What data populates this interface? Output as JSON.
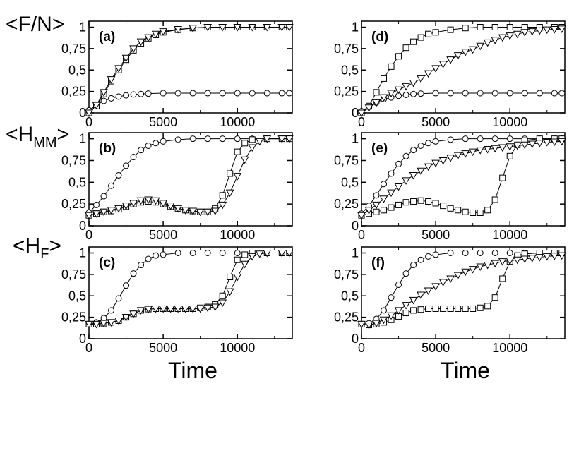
{
  "figure": {
    "row_labels": [
      {
        "base": "<F/N>",
        "sub": ""
      },
      {
        "base": "<H",
        "sub": "MM",
        "tail": ">"
      },
      {
        "base": "<H",
        "sub": "F",
        "tail": ">"
      }
    ],
    "xlabel": "Time",
    "x_ticks": [
      "0",
      "5000",
      "10000"
    ],
    "y_ticks": [
      "0",
      "0,25",
      "0,5",
      "0,75",
      "1"
    ]
  },
  "chart_data": [
    {
      "type": "line",
      "panel": "(a)",
      "xlim": [
        0,
        13700
      ],
      "ylim": [
        0,
        1.07
      ],
      "grid": false,
      "series": [
        {
          "marker": "circle",
          "x": [
            0,
            500,
            1000,
            1500,
            2000,
            2500,
            3000,
            3500,
            4000,
            5000,
            6000,
            7000,
            8000,
            9000,
            10000,
            11000,
            12000,
            13000,
            13500
          ],
          "y": [
            0.03,
            0.09,
            0.14,
            0.17,
            0.19,
            0.205,
            0.215,
            0.22,
            0.225,
            0.23,
            0.23,
            0.23,
            0.23,
            0.23,
            0.23,
            0.23,
            0.23,
            0.23,
            0.23
          ]
        },
        {
          "marker": "square",
          "x": [
            0,
            500,
            1000,
            1500,
            2000,
            2500,
            3000,
            3500,
            4000,
            4500,
            5000,
            6000,
            7000,
            8000,
            9000,
            10000,
            11000,
            12000,
            13000,
            13500
          ],
          "y": [
            0.0,
            0.08,
            0.22,
            0.37,
            0.5,
            0.62,
            0.73,
            0.81,
            0.87,
            0.91,
            0.94,
            0.97,
            0.99,
            1.0,
            1.0,
            1.0,
            1.0,
            1.0,
            1.0,
            1.0
          ]
        },
        {
          "marker": "triangle",
          "x": [
            0,
            500,
            1000,
            1500,
            2000,
            2500,
            3000,
            3500,
            4000,
            4500,
            5000,
            6000,
            7000,
            8000,
            9000,
            10000,
            11000,
            12000,
            13000,
            13500
          ],
          "y": [
            0.0,
            0.09,
            0.24,
            0.39,
            0.52,
            0.64,
            0.75,
            0.83,
            0.88,
            0.92,
            0.95,
            0.975,
            0.99,
            1.0,
            1.0,
            1.0,
            1.0,
            1.0,
            1.0,
            1.0
          ]
        }
      ]
    },
    {
      "type": "line",
      "panel": "(b)",
      "xlim": [
        0,
        13700
      ],
      "ylim": [
        0,
        1.07
      ],
      "grid": false,
      "series": [
        {
          "marker": "circle",
          "x": [
            0,
            500,
            1000,
            1500,
            2000,
            2500,
            3000,
            3500,
            4000,
            4500,
            5000,
            6000,
            7000,
            8000,
            9000,
            10000,
            11000,
            12000,
            13000,
            13500
          ],
          "y": [
            0.15,
            0.24,
            0.34,
            0.46,
            0.58,
            0.69,
            0.79,
            0.87,
            0.92,
            0.95,
            0.97,
            0.99,
            1.0,
            1.0,
            1.0,
            1.0,
            1.0,
            1.0,
            1.0,
            1.0
          ]
        },
        {
          "marker": "square",
          "x": [
            0,
            500,
            1000,
            1500,
            2000,
            2500,
            3000,
            3500,
            4000,
            4500,
            5000,
            5500,
            6000,
            6500,
            7000,
            7500,
            8000,
            8500,
            9000,
            9500,
            10000,
            10500,
            11000,
            12000,
            13000,
            13500
          ],
          "y": [
            0.12,
            0.14,
            0.16,
            0.17,
            0.19,
            0.22,
            0.25,
            0.27,
            0.28,
            0.27,
            0.25,
            0.22,
            0.2,
            0.18,
            0.17,
            0.16,
            0.16,
            0.2,
            0.35,
            0.6,
            0.85,
            0.95,
            0.99,
            1.0,
            1.0,
            1.0
          ]
        },
        {
          "marker": "triangle",
          "x": [
            0,
            500,
            1000,
            1500,
            2000,
            2500,
            3000,
            3500,
            4000,
            4500,
            5000,
            5500,
            6000,
            6500,
            7000,
            7500,
            8000,
            8500,
            9000,
            9500,
            10000,
            10500,
            11000,
            11500,
            12000,
            13000,
            13500
          ],
          "y": [
            0.12,
            0.14,
            0.16,
            0.18,
            0.2,
            0.23,
            0.26,
            0.29,
            0.3,
            0.29,
            0.26,
            0.23,
            0.2,
            0.18,
            0.17,
            0.16,
            0.16,
            0.17,
            0.24,
            0.38,
            0.57,
            0.76,
            0.9,
            0.97,
            1.0,
            1.0,
            1.0
          ]
        }
      ]
    },
    {
      "type": "line",
      "panel": "(c)",
      "xlim": [
        0,
        13700
      ],
      "ylim": [
        0,
        1.07
      ],
      "grid": false,
      "series": [
        {
          "marker": "circle",
          "x": [
            0,
            500,
            1000,
            1500,
            2000,
            2500,
            3000,
            3500,
            4000,
            4500,
            5000,
            6000,
            7000,
            8000,
            9000,
            10000,
            11000,
            12000,
            13000,
            13500
          ],
          "y": [
            0.17,
            0.19,
            0.24,
            0.33,
            0.47,
            0.62,
            0.76,
            0.86,
            0.93,
            0.97,
            0.98,
            1.0,
            1.0,
            1.0,
            1.0,
            1.0,
            1.0,
            1.0,
            1.0,
            1.0
          ]
        },
        {
          "marker": "square",
          "x": [
            0,
            500,
            1000,
            1500,
            2000,
            2500,
            3000,
            3500,
            4000,
            4500,
            5000,
            5500,
            6000,
            6500,
            7000,
            7500,
            8000,
            8500,
            9000,
            9500,
            10000,
            10500,
            11000,
            12000,
            13000,
            13500
          ],
          "y": [
            0.17,
            0.17,
            0.18,
            0.19,
            0.21,
            0.25,
            0.29,
            0.33,
            0.345,
            0.35,
            0.35,
            0.35,
            0.35,
            0.35,
            0.35,
            0.36,
            0.37,
            0.4,
            0.5,
            0.72,
            0.92,
            0.98,
            1.0,
            1.0,
            1.0,
            1.0
          ]
        },
        {
          "marker": "triangle",
          "x": [
            0,
            500,
            1000,
            1500,
            2000,
            2500,
            3000,
            3500,
            4000,
            4500,
            5000,
            5500,
            6000,
            6500,
            7000,
            7500,
            8000,
            8500,
            9000,
            9500,
            10000,
            10500,
            11000,
            11500,
            12000,
            13000,
            13500
          ],
          "y": [
            0.17,
            0.17,
            0.18,
            0.19,
            0.21,
            0.25,
            0.29,
            0.33,
            0.345,
            0.35,
            0.35,
            0.35,
            0.35,
            0.35,
            0.35,
            0.35,
            0.36,
            0.37,
            0.42,
            0.55,
            0.72,
            0.87,
            0.96,
            0.99,
            1.0,
            1.0,
            1.0
          ]
        }
      ]
    },
    {
      "type": "line",
      "panel": "(d)",
      "xlim": [
        0,
        13700
      ],
      "ylim": [
        0,
        1.07
      ],
      "grid": false,
      "series": [
        {
          "marker": "circle",
          "x": [
            0,
            500,
            1000,
            1500,
            2000,
            2500,
            3000,
            3500,
            4000,
            5000,
            6000,
            7000,
            8000,
            9000,
            10000,
            11000,
            12000,
            13000,
            13500
          ],
          "y": [
            0.02,
            0.07,
            0.12,
            0.16,
            0.18,
            0.2,
            0.21,
            0.22,
            0.225,
            0.23,
            0.23,
            0.23,
            0.23,
            0.23,
            0.23,
            0.23,
            0.23,
            0.23,
            0.23
          ]
        },
        {
          "marker": "square",
          "x": [
            0,
            500,
            1000,
            1500,
            2000,
            2500,
            3000,
            3500,
            4000,
            4500,
            5000,
            6000,
            7000,
            8000,
            9000,
            10000,
            11000,
            12000,
            13000,
            13500
          ],
          "y": [
            0.0,
            0.08,
            0.24,
            0.4,
            0.54,
            0.66,
            0.76,
            0.83,
            0.88,
            0.92,
            0.94,
            0.97,
            0.99,
            1.0,
            1.0,
            1.0,
            1.0,
            1.0,
            1.0,
            1.0
          ]
        },
        {
          "marker": "triangle",
          "x": [
            0,
            500,
            1000,
            1500,
            2000,
            2500,
            3000,
            3500,
            4000,
            4500,
            5000,
            5500,
            6000,
            6500,
            7000,
            7500,
            8000,
            8500,
            9000,
            9500,
            10000,
            10500,
            11000,
            11500,
            12000,
            12500,
            13000,
            13500
          ],
          "y": [
            0.0,
            0.06,
            0.12,
            0.18,
            0.23,
            0.27,
            0.31,
            0.35,
            0.4,
            0.46,
            0.52,
            0.57,
            0.62,
            0.67,
            0.71,
            0.74,
            0.78,
            0.82,
            0.85,
            0.88,
            0.9,
            0.92,
            0.94,
            0.95,
            0.96,
            0.97,
            0.975,
            0.98
          ]
        }
      ]
    },
    {
      "type": "line",
      "panel": "(e)",
      "xlim": [
        0,
        13700
      ],
      "ylim": [
        0,
        1.07
      ],
      "grid": false,
      "series": [
        {
          "marker": "circle",
          "x": [
            0,
            500,
            1000,
            1500,
            2000,
            2500,
            3000,
            3500,
            4000,
            4500,
            5000,
            6000,
            7000,
            8000,
            9000,
            10000,
            11000,
            12000,
            13000,
            13500
          ],
          "y": [
            0.14,
            0.23,
            0.35,
            0.48,
            0.6,
            0.71,
            0.8,
            0.87,
            0.92,
            0.95,
            0.97,
            0.99,
            1.0,
            1.0,
            1.0,
            1.0,
            1.0,
            1.0,
            1.0,
            1.0
          ]
        },
        {
          "marker": "square",
          "x": [
            0,
            500,
            1000,
            1500,
            2000,
            2500,
            3000,
            3500,
            4000,
            4500,
            5000,
            5500,
            6000,
            6500,
            7000,
            7500,
            8000,
            8500,
            9000,
            9500,
            10000,
            10500,
            11000,
            12000,
            13000,
            13500
          ],
          "y": [
            0.12,
            0.14,
            0.16,
            0.18,
            0.21,
            0.24,
            0.27,
            0.28,
            0.29,
            0.28,
            0.26,
            0.23,
            0.2,
            0.18,
            0.16,
            0.15,
            0.15,
            0.18,
            0.3,
            0.55,
            0.8,
            0.93,
            0.98,
            1.0,
            1.0,
            1.0
          ]
        },
        {
          "marker": "triangle",
          "x": [
            0,
            500,
            1000,
            1500,
            2000,
            2500,
            3000,
            3500,
            4000,
            4500,
            5000,
            5500,
            6000,
            6500,
            7000,
            7500,
            8000,
            8500,
            9000,
            9500,
            10000,
            10500,
            11000,
            11500,
            12000,
            12500,
            13000,
            13500
          ],
          "y": [
            0.12,
            0.18,
            0.24,
            0.31,
            0.38,
            0.45,
            0.52,
            0.58,
            0.63,
            0.68,
            0.72,
            0.75,
            0.78,
            0.81,
            0.83,
            0.85,
            0.87,
            0.88,
            0.89,
            0.9,
            0.91,
            0.92,
            0.93,
            0.94,
            0.95,
            0.96,
            0.965,
            0.97
          ]
        }
      ]
    },
    {
      "type": "line",
      "panel": "(f)",
      "xlim": [
        0,
        13700
      ],
      "ylim": [
        0,
        1.07
      ],
      "grid": false,
      "series": [
        {
          "marker": "circle",
          "x": [
            0,
            500,
            1000,
            1500,
            2000,
            2500,
            3000,
            3500,
            4000,
            4500,
            5000,
            6000,
            7000,
            8000,
            9000,
            10000,
            11000,
            12000,
            13000,
            13500
          ],
          "y": [
            0.17,
            0.18,
            0.23,
            0.33,
            0.48,
            0.63,
            0.76,
            0.86,
            0.92,
            0.96,
            0.98,
            1.0,
            1.0,
            1.0,
            1.0,
            1.0,
            1.0,
            1.0,
            1.0,
            1.0
          ]
        },
        {
          "marker": "square",
          "x": [
            0,
            500,
            1000,
            1500,
            2000,
            2500,
            3000,
            3500,
            4000,
            4500,
            5000,
            5500,
            6000,
            6500,
            7000,
            7500,
            8000,
            8500,
            9000,
            9500,
            10000,
            10500,
            11000,
            12000,
            13000,
            13500
          ],
          "y": [
            0.17,
            0.16,
            0.17,
            0.19,
            0.22,
            0.26,
            0.3,
            0.33,
            0.34,
            0.35,
            0.35,
            0.35,
            0.35,
            0.35,
            0.35,
            0.35,
            0.36,
            0.38,
            0.48,
            0.7,
            0.9,
            0.97,
            0.99,
            1.0,
            1.0,
            1.0
          ]
        },
        {
          "marker": "triangle",
          "x": [
            0,
            500,
            1000,
            1500,
            2000,
            2500,
            3000,
            3500,
            4000,
            4500,
            5000,
            5500,
            6000,
            6500,
            7000,
            7500,
            8000,
            8500,
            9000,
            9500,
            10000,
            10500,
            11000,
            11500,
            12000,
            12500,
            13000,
            13500
          ],
          "y": [
            0.17,
            0.16,
            0.18,
            0.22,
            0.27,
            0.33,
            0.39,
            0.45,
            0.51,
            0.56,
            0.61,
            0.66,
            0.7,
            0.74,
            0.78,
            0.81,
            0.84,
            0.86,
            0.88,
            0.9,
            0.91,
            0.92,
            0.93,
            0.94,
            0.95,
            0.96,
            0.965,
            0.97
          ]
        }
      ]
    }
  ]
}
